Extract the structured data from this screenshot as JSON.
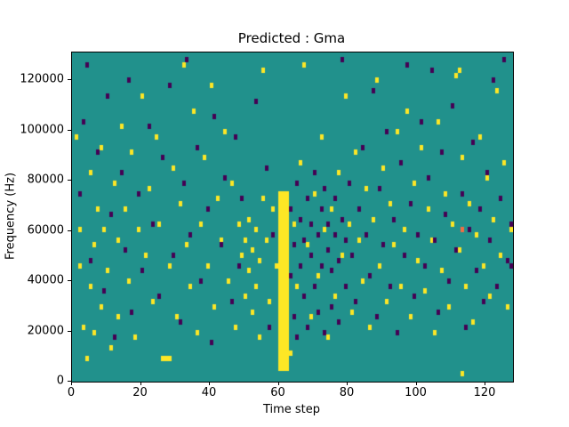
{
  "figure": {
    "title": "Predicted : Gma",
    "xlabel": "Time step",
    "ylabel": "Frequency (Hz)"
  },
  "chart_data": {
    "type": "heatmap",
    "title": "Predicted : Gma",
    "xlabel": "Time step",
    "ylabel": "Frequency (Hz)",
    "x_range": [
      0,
      128
    ],
    "y_range": [
      0,
      131072
    ],
    "grid": {
      "cols": 128,
      "rows": 64,
      "row_height_hz": 2048
    },
    "x_ticks": [
      0,
      20,
      40,
      60,
      80,
      100,
      120
    ],
    "y_ticks": [
      0,
      20000,
      40000,
      60000,
      80000,
      100000,
      120000
    ],
    "legend": "none",
    "colors": {
      "background": "#21918c",
      "low": "#440154",
      "high": "#fde725",
      "accent": "#f46d43"
    },
    "yellow_band": {
      "cols": [
        60,
        62
      ],
      "rows": [
        2,
        36
      ]
    },
    "yellow_cells": [
      [
        1,
        47
      ],
      [
        2,
        29
      ],
      [
        2,
        22
      ],
      [
        3,
        10
      ],
      [
        4,
        4
      ],
      [
        5,
        40
      ],
      [
        5,
        18
      ],
      [
        6,
        26
      ],
      [
        6,
        9
      ],
      [
        7,
        33
      ],
      [
        8,
        45
      ],
      [
        8,
        14
      ],
      [
        9,
        29
      ],
      [
        10,
        21
      ],
      [
        11,
        6
      ],
      [
        12,
        38
      ],
      [
        13,
        27
      ],
      [
        13,
        12
      ],
      [
        14,
        49
      ],
      [
        15,
        33
      ],
      [
        16,
        19
      ],
      [
        17,
        44
      ],
      [
        18,
        8
      ],
      [
        19,
        29
      ],
      [
        20,
        55
      ],
      [
        21,
        24
      ],
      [
        22,
        37
      ],
      [
        23,
        15
      ],
      [
        24,
        47
      ],
      [
        25,
        30
      ],
      [
        26,
        4
      ],
      [
        27,
        4
      ],
      [
        28,
        4
      ],
      [
        28,
        22
      ],
      [
        29,
        41
      ],
      [
        30,
        12
      ],
      [
        31,
        34
      ],
      [
        32,
        61
      ],
      [
        33,
        26
      ],
      [
        34,
        18
      ],
      [
        35,
        52
      ],
      [
        36,
        9
      ],
      [
        37,
        30
      ],
      [
        38,
        43
      ],
      [
        39,
        22
      ],
      [
        40,
        57
      ],
      [
        41,
        14
      ],
      [
        42,
        35
      ],
      [
        43,
        27
      ],
      [
        44,
        48
      ],
      [
        45,
        19
      ],
      [
        46,
        38
      ],
      [
        47,
        10
      ],
      [
        48,
        30
      ],
      [
        49,
        24
      ],
      [
        50,
        16
      ],
      [
        50,
        27
      ],
      [
        51,
        21
      ],
      [
        51,
        31
      ],
      [
        52,
        13
      ],
      [
        52,
        25
      ],
      [
        53,
        18
      ],
      [
        53,
        29
      ],
      [
        54,
        8
      ],
      [
        54,
        23
      ],
      [
        55,
        60
      ],
      [
        55,
        35
      ],
      [
        56,
        27
      ],
      [
        57,
        15
      ],
      [
        58,
        33
      ],
      [
        59,
        22
      ],
      [
        63,
        5
      ],
      [
        64,
        30
      ],
      [
        65,
        18
      ],
      [
        66,
        42
      ],
      [
        67,
        61
      ],
      [
        68,
        26
      ],
      [
        69,
        12
      ],
      [
        70,
        36
      ],
      [
        71,
        20
      ],
      [
        72,
        47
      ],
      [
        73,
        29
      ],
      [
        74,
        8
      ],
      [
        75,
        33
      ],
      [
        76,
        16
      ],
      [
        77,
        40
      ],
      [
        78,
        24
      ],
      [
        79,
        55
      ],
      [
        80,
        30
      ],
      [
        81,
        13
      ],
      [
        82,
        44
      ],
      [
        83,
        27
      ],
      [
        84,
        19
      ],
      [
        85,
        37
      ],
      [
        86,
        10
      ],
      [
        87,
        31
      ],
      [
        88,
        58
      ],
      [
        89,
        22
      ],
      [
        90,
        41
      ],
      [
        91,
        15
      ],
      [
        92,
        34
      ],
      [
        93,
        26
      ],
      [
        94,
        48
      ],
      [
        95,
        18
      ],
      [
        96,
        29
      ],
      [
        97,
        52
      ],
      [
        98,
        12
      ],
      [
        99,
        38
      ],
      [
        100,
        23
      ],
      [
        101,
        45
      ],
      [
        102,
        17
      ],
      [
        103,
        33
      ],
      [
        104,
        27
      ],
      [
        105,
        9
      ],
      [
        106,
        50
      ],
      [
        107,
        21
      ],
      [
        108,
        36
      ],
      [
        109,
        14
      ],
      [
        110,
        30
      ],
      [
        111,
        59
      ],
      [
        112,
        60
      ],
      [
        112,
        25
      ],
      [
        113,
        43
      ],
      [
        113,
        1
      ],
      [
        114,
        18
      ],
      [
        115,
        34
      ],
      [
        116,
        11
      ],
      [
        117,
        28
      ],
      [
        118,
        47
      ],
      [
        119,
        22
      ],
      [
        120,
        39
      ],
      [
        121,
        16
      ],
      [
        122,
        31
      ],
      [
        123,
        56
      ],
      [
        124,
        24
      ],
      [
        125,
        42
      ],
      [
        126,
        14
      ],
      [
        127,
        29
      ]
    ],
    "purple_cells": [
      [
        2,
        36
      ],
      [
        3,
        50
      ],
      [
        4,
        61
      ],
      [
        5,
        23
      ],
      [
        7,
        44
      ],
      [
        9,
        17
      ],
      [
        10,
        55
      ],
      [
        11,
        32
      ],
      [
        12,
        8
      ],
      [
        14,
        40
      ],
      [
        15,
        25
      ],
      [
        16,
        58
      ],
      [
        17,
        13
      ],
      [
        19,
        36
      ],
      [
        20,
        21
      ],
      [
        22,
        49
      ],
      [
        23,
        30
      ],
      [
        25,
        16
      ],
      [
        26,
        43
      ],
      [
        28,
        57
      ],
      [
        29,
        24
      ],
      [
        31,
        11
      ],
      [
        32,
        38
      ],
      [
        33,
        62
      ],
      [
        34,
        28
      ],
      [
        36,
        45
      ],
      [
        37,
        19
      ],
      [
        39,
        33
      ],
      [
        40,
        7
      ],
      [
        41,
        51
      ],
      [
        43,
        26
      ],
      [
        44,
        39
      ],
      [
        46,
        15
      ],
      [
        47,
        47
      ],
      [
        48,
        22
      ],
      [
        49,
        35
      ],
      [
        53,
        54
      ],
      [
        56,
        41
      ],
      [
        57,
        10
      ],
      [
        58,
        28
      ],
      [
        63,
        20
      ],
      [
        63,
        33
      ],
      [
        64,
        12
      ],
      [
        64,
        26
      ],
      [
        65,
        38
      ],
      [
        65,
        8
      ],
      [
        66,
        22
      ],
      [
        66,
        31
      ],
      [
        67,
        16
      ],
      [
        67,
        27
      ],
      [
        68,
        35
      ],
      [
        68,
        10
      ],
      [
        69,
        24
      ],
      [
        69,
        30
      ],
      [
        70,
        18
      ],
      [
        70,
        40
      ],
      [
        71,
        13
      ],
      [
        71,
        28
      ],
      [
        72,
        33
      ],
      [
        72,
        22
      ],
      [
        73,
        9
      ],
      [
        73,
        37
      ],
      [
        74,
        25
      ],
      [
        74,
        30
      ],
      [
        75,
        14
      ],
      [
        75,
        21
      ],
      [
        76,
        35
      ],
      [
        76,
        28
      ],
      [
        77,
        11
      ],
      [
        77,
        23
      ],
      [
        78,
        31
      ],
      [
        78,
        62
      ],
      [
        79,
        18
      ],
      [
        79,
        27
      ],
      [
        80,
        38
      ],
      [
        81,
        24
      ],
      [
        82,
        15
      ],
      [
        83,
        33
      ],
      [
        84,
        45
      ],
      [
        85,
        28
      ],
      [
        86,
        20
      ],
      [
        87,
        56
      ],
      [
        88,
        12
      ],
      [
        89,
        37
      ],
      [
        90,
        26
      ],
      [
        91,
        48
      ],
      [
        92,
        18
      ],
      [
        93,
        31
      ],
      [
        94,
        9
      ],
      [
        95,
        42
      ],
      [
        96,
        24
      ],
      [
        97,
        61
      ],
      [
        98,
        34
      ],
      [
        99,
        16
      ],
      [
        100,
        28
      ],
      [
        101,
        50
      ],
      [
        102,
        22
      ],
      [
        103,
        39
      ],
      [
        104,
        60
      ],
      [
        105,
        27
      ],
      [
        106,
        13
      ],
      [
        107,
        44
      ],
      [
        108,
        32
      ],
      [
        109,
        19
      ],
      [
        110,
        53
      ],
      [
        111,
        25
      ],
      [
        113,
        36
      ],
      [
        114,
        10
      ],
      [
        115,
        29
      ],
      [
        116,
        46
      ],
      [
        117,
        21
      ],
      [
        118,
        33
      ],
      [
        119,
        15
      ],
      [
        120,
        40
      ],
      [
        121,
        27
      ],
      [
        122,
        58
      ],
      [
        123,
        18
      ],
      [
        124,
        35
      ],
      [
        125,
        62
      ],
      [
        126,
        23
      ],
      [
        127,
        30
      ],
      [
        127,
        22
      ]
    ],
    "orange_cells": [
      [
        113,
        29
      ]
    ]
  }
}
